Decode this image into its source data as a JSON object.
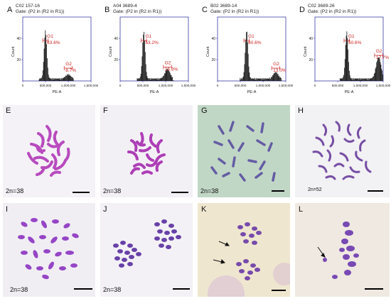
{
  "histograms": [
    {
      "letter": "A",
      "sample": "C02 157-16",
      "gate": "Gate: (P2 in (R2 in R1))",
      "g1_label": "G1",
      "g1_pct": "63.6%",
      "g2_label": "G2",
      "g2_pct": "8.7%"
    },
    {
      "letter": "B",
      "sample": "A04 3689-4",
      "gate": "Gate: (P2 in (R2 in R1))",
      "g1_label": "G1",
      "g1_pct": "53.2%",
      "g2_label": "G2",
      "g2_pct": "16.3%"
    },
    {
      "letter": "C",
      "sample": "B02 3689-14",
      "gate": "Gate: (P2 in (R2 in R1))",
      "g1_label": "G1",
      "g1_pct": "60.6%",
      "g2_label": "G2",
      "g2_pct": "13.0%"
    },
    {
      "letter": "D",
      "sample": "C02 3689-26",
      "gate": "Gate: (P2 in (R2 in R1))",
      "g1_label": "G1",
      "g1_pct": "50.6%",
      "g2_label": "G2",
      "g2_pct": "17.7%"
    }
  ],
  "axis": {
    "ylabel": "Count",
    "xlabel": "PE-A",
    "xticks": [
      "0",
      "500,000",
      "1,000,000",
      "1,500,000"
    ],
    "yticks": [
      "20",
      "40"
    ]
  },
  "micrographs": [
    {
      "letter": "E",
      "ploidy": "2n=38"
    },
    {
      "letter": "F",
      "ploidy": "2n=38"
    },
    {
      "letter": "G",
      "ploidy": "2n=38"
    },
    {
      "letter": "H",
      "ploidy": "2n=52"
    },
    {
      "letter": "I",
      "ploidy": "2n=38"
    },
    {
      "letter": "J",
      "ploidy": "2n=38"
    },
    {
      "letter": "K",
      "ploidy": ""
    },
    {
      "letter": "L",
      "ploidy": ""
    }
  ],
  "colors": {
    "axis": "#3a3aa8",
    "gate": "#cc2222",
    "bars": "#111111"
  },
  "chart_data": [
    {
      "type": "bar",
      "title": "C02 157-16",
      "xlabel": "PE-A",
      "ylabel": "Count",
      "xlim": [
        0,
        1500000
      ],
      "peaks": [
        {
          "name": "G1",
          "x": 500000,
          "y": 45,
          "percent": 63.6
        },
        {
          "name": "G2",
          "x": 1000000,
          "y": 4,
          "percent": 8.7
        }
      ]
    },
    {
      "type": "bar",
      "title": "A04 3689-4",
      "xlabel": "PE-A",
      "ylabel": "Count",
      "xlim": [
        0,
        1500000
      ],
      "peaks": [
        {
          "name": "G1",
          "x": 520000,
          "y": 44,
          "percent": 53.2
        },
        {
          "name": "G2",
          "x": 1040000,
          "y": 9,
          "percent": 16.3
        }
      ]
    },
    {
      "type": "bar",
      "title": "B02 3689-14",
      "xlabel": "PE-A",
      "ylabel": "Count",
      "xlim": [
        0,
        1500000
      ],
      "peaks": [
        {
          "name": "G1",
          "x": 640000,
          "y": 45,
          "percent": 60.6
        },
        {
          "name": "G2",
          "x": 1280000,
          "y": 6,
          "percent": 13.0
        }
      ]
    },
    {
      "type": "bar",
      "title": "C02 3689-26",
      "xlabel": "PE-A",
      "ylabel": "Count",
      "xlim": [
        0,
        1500000
      ],
      "peaks": [
        {
          "name": "G1",
          "x": 700000,
          "y": 44,
          "percent": 50.6
        },
        {
          "name": "G2",
          "x": 1400000,
          "y": 20,
          "percent": 17.7
        }
      ]
    }
  ]
}
